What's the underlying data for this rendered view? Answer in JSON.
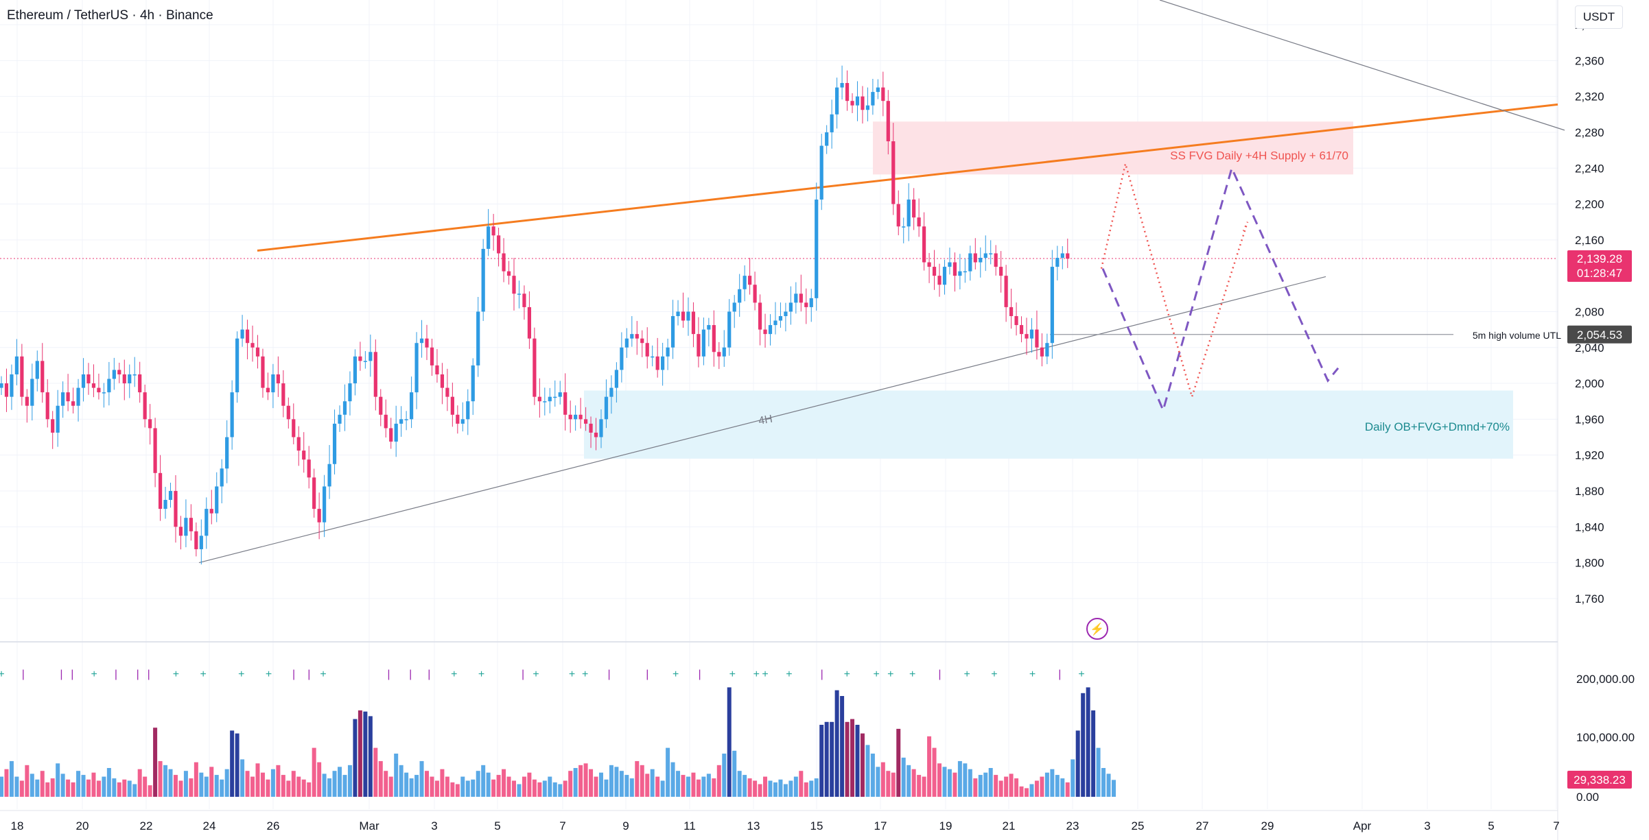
{
  "header": {
    "symbol_title": "Ethereum / TetherUS · 4h · Binance",
    "currency_button": "USDT"
  },
  "colors": {
    "up": "#2e9be3",
    "down": "#e9336f",
    "vol_up": "#5aa9e6",
    "vol_down": "#f2608e",
    "vol_up_dark": "#2a3f9d",
    "vol_down_dark": "#a12a62",
    "trendline": "#f57c1f",
    "supply_zone": "#fde2e6",
    "demand_zone": "#e2f4fb",
    "projection": "#7e57c2",
    "projection_alt": "#ef5350",
    "grid": "#f0f3fa",
    "axis_text": "#131722"
  },
  "chart_data": {
    "type": "candlestick",
    "symbol": "ETH/USDT",
    "interval": "4h",
    "exchange": "Binance",
    "price_axis": {
      "ticks": [
        2400,
        2360,
        2320,
        2280,
        2240,
        2200,
        2160,
        2080,
        2040,
        2000,
        1960,
        1920,
        1880,
        1840,
        1800,
        1760
      ],
      "ylim": [
        1745,
        2425
      ]
    },
    "x_axis": {
      "ticks": [
        "18",
        "20",
        "22",
        "24",
        "26",
        "Mar",
        "3",
        "5",
        "7",
        "9",
        "11",
        "13",
        "15",
        "17",
        "19",
        "21",
        "23",
        "25",
        "27",
        "29",
        "Apr",
        "3",
        "5",
        "7"
      ]
    },
    "last_price": "2,139.28",
    "countdown": "01:28:47",
    "utl_price": "2,054.53",
    "utl_label": "5m high volume UTL",
    "volume_axis": {
      "ticks": [
        "200,000.00",
        "100,000.00",
        "0.00"
      ],
      "ylim": [
        0,
        220000
      ]
    },
    "last_volume": "29,338.23",
    "zones": [
      {
        "label": "SS FVG Daily +4H Supply + 61/70",
        "price_low": 2233,
        "price_high": 2292,
        "date_start": "Mar 16",
        "date_end": "Mar 31"
      },
      {
        "label": "Daily OB+FVG+Dmnd+70%",
        "price_low": 1916,
        "price_high": 1992,
        "date_start": "Mar 7",
        "date_end": "Apr 5"
      }
    ],
    "trendline_label": "4H",
    "closes": [
      2000,
      1985,
      2010,
      2030,
      1985,
      1975,
      2005,
      2025,
      1990,
      1960,
      1945,
      1975,
      1990,
      1980,
      1975,
      1995,
      2010,
      2000,
      1995,
      1990,
      1990,
      2005,
      2015,
      2010,
      2000,
      2010,
      2010,
      1990,
      1960,
      1950,
      1900,
      1860,
      1870,
      1880,
      1840,
      1830,
      1850,
      1835,
      1815,
      1830,
      1860,
      1855,
      1885,
      1905,
      1940,
      1990,
      2050,
      2060,
      2045,
      2040,
      2030,
      1995,
      1990,
      2010,
      2000,
      1975,
      1960,
      1940,
      1925,
      1915,
      1895,
      1860,
      1845,
      1885,
      1910,
      1955,
      1965,
      1980,
      2000,
      2030,
      2025,
      2025,
      2035,
      1985,
      1965,
      1950,
      1935,
      1955,
      1960,
      1960,
      1990,
      2045,
      2050,
      2040,
      2020,
      2010,
      1995,
      1985,
      1965,
      1955,
      1960,
      1980,
      2020,
      2080,
      2150,
      2175,
      2165,
      2145,
      2125,
      2120,
      2100,
      2100,
      2085,
      2050,
      1985,
      1980,
      1980,
      1985,
      1985,
      1990,
      1965,
      1960,
      1965,
      1960,
      1955,
      1945,
      1940,
      1960,
      1985,
      1995,
      2015,
      2040,
      2050,
      2055,
      2050,
      2045,
      2030,
      2030,
      2015,
      2030,
      2040,
      2075,
      2080,
      2070,
      2080,
      2055,
      2030,
      2060,
      2065,
      2035,
      2030,
      2040,
      2080,
      2090,
      2105,
      2120,
      2110,
      2090,
      2060,
      2055,
      2065,
      2070,
      2075,
      2080,
      2090,
      2100,
      2090,
      2085,
      2095,
      2205,
      2265,
      2280,
      2300,
      2330,
      2335,
      2315,
      2310,
      2320,
      2305,
      2310,
      2325,
      2330,
      2315,
      2270,
      2200,
      2175,
      2175,
      2205,
      2185,
      2175,
      2135,
      2130,
      2120,
      2110,
      2130,
      2135,
      2120,
      2125,
      2125,
      2145,
      2135,
      2140,
      2145,
      2145,
      2130,
      2120,
      2085,
      2075,
      2065,
      2055,
      2050,
      2060,
      2040,
      2030,
      2045,
      2130,
      2140,
      2145,
      2139
    ],
    "volumes": [
      35000,
      48000,
      62000,
      35000,
      28000,
      55000,
      40000,
      30000,
      45000,
      25000,
      32000,
      58000,
      40000,
      30000,
      25000,
      45000,
      38000,
      30000,
      42000,
      28000,
      35000,
      50000,
      32000,
      25000,
      30000,
      28000,
      22000,
      48000,
      35000,
      20000,
      120000,
      62000,
      55000,
      48000,
      38000,
      28000,
      45000,
      32000,
      60000,
      42000,
      35000,
      52000,
      38000,
      30000,
      48000,
      115000,
      110000,
      65000,
      45000,
      35000,
      58000,
      42000,
      30000,
      48000,
      55000,
      38000,
      28000,
      45000,
      35000,
      30000,
      25000,
      85000,
      60000,
      40000,
      32000,
      45000,
      52000,
      38000,
      55000,
      135000,
      150000,
      148000,
      140000,
      85000,
      62000,
      45000,
      35000,
      75000,
      55000,
      42000,
      32000,
      38000,
      62000,
      45000,
      35000,
      28000,
      48000,
      35000,
      25000,
      22000,
      35000,
      28000,
      30000,
      45000,
      55000,
      42000,
      30000,
      38000,
      48000,
      35000,
      28000,
      22000,
      35000,
      42000,
      30000,
      25000,
      28000,
      35000,
      25000,
      22000,
      28000,
      45000,
      50000,
      55000,
      58000,
      48000,
      35000,
      42000,
      30000,
      55000,
      52000,
      45000,
      38000,
      32000,
      62000,
      55000,
      40000,
      48000,
      35000,
      28000,
      85000,
      60000,
      45000,
      38000,
      35000,
      42000,
      30000,
      35000,
      40000,
      32000,
      55000,
      75000,
      190000,
      80000,
      45000,
      38000,
      32000,
      28000,
      22000,
      35000,
      28000,
      25000,
      30000,
      22000,
      28000,
      35000,
      45000,
      25000,
      28000,
      32000,
      125000,
      130000,
      130000,
      185000,
      175000,
      130000,
      135000,
      125000,
      110000,
      90000,
      75000,
      52000,
      60000,
      45000,
      42000,
      118000,
      68000,
      55000,
      48000,
      38000,
      35000,
      105000,
      85000,
      58000,
      52000,
      48000,
      42000,
      62000,
      58000,
      48000,
      32000,
      38000,
      42000,
      50000,
      38000,
      28000,
      35000,
      40000,
      32000,
      18000,
      15000,
      22000,
      28000,
      35000,
      42000,
      48000,
      38000,
      32000,
      25000,
      65000,
      115000,
      180000,
      190000,
      150000,
      85000,
      50000,
      40000,
      29338
    ],
    "volume_markers": [
      {
        "pos": 0.0,
        "sym": "+"
      },
      {
        "pos": 0.02,
        "sym": "|"
      },
      {
        "pos": 0.055,
        "sym": "|"
      },
      {
        "pos": 0.065,
        "sym": "|"
      },
      {
        "pos": 0.085,
        "sym": "+"
      },
      {
        "pos": 0.105,
        "sym": "|"
      },
      {
        "pos": 0.125,
        "sym": "|"
      },
      {
        "pos": 0.135,
        "sym": "|"
      },
      {
        "pos": 0.16,
        "sym": "+"
      },
      {
        "pos": 0.185,
        "sym": "+"
      },
      {
        "pos": 0.22,
        "sym": "+"
      },
      {
        "pos": 0.245,
        "sym": "+"
      },
      {
        "pos": 0.268,
        "sym": "|"
      },
      {
        "pos": 0.282,
        "sym": "|"
      },
      {
        "pos": 0.295,
        "sym": "+"
      },
      {
        "pos": 0.355,
        "sym": "|"
      },
      {
        "pos": 0.375,
        "sym": "|"
      },
      {
        "pos": 0.392,
        "sym": "|"
      },
      {
        "pos": 0.415,
        "sym": "+"
      },
      {
        "pos": 0.44,
        "sym": "+"
      },
      {
        "pos": 0.478,
        "sym": "|"
      },
      {
        "pos": 0.49,
        "sym": "+"
      },
      {
        "pos": 0.523,
        "sym": "+"
      },
      {
        "pos": 0.535,
        "sym": "+"
      },
      {
        "pos": 0.557,
        "sym": "|"
      },
      {
        "pos": 0.592,
        "sym": "|"
      },
      {
        "pos": 0.618,
        "sym": "+"
      },
      {
        "pos": 0.64,
        "sym": "|"
      },
      {
        "pos": 0.67,
        "sym": "+"
      },
      {
        "pos": 0.692,
        "sym": "+"
      },
      {
        "pos": 0.7,
        "sym": "+"
      },
      {
        "pos": 0.722,
        "sym": "+"
      },
      {
        "pos": 0.752,
        "sym": "|"
      },
      {
        "pos": 0.775,
        "sym": "+"
      },
      {
        "pos": 0.802,
        "sym": "+"
      },
      {
        "pos": 0.815,
        "sym": "+"
      },
      {
        "pos": 0.835,
        "sym": "+"
      },
      {
        "pos": 0.86,
        "sym": "|"
      },
      {
        "pos": 0.885,
        "sym": "+"
      },
      {
        "pos": 0.91,
        "sym": "+"
      },
      {
        "pos": 0.945,
        "sym": "+"
      },
      {
        "pos": 0.97,
        "sym": "|"
      },
      {
        "pos": 0.99,
        "sym": "+"
      }
    ]
  }
}
